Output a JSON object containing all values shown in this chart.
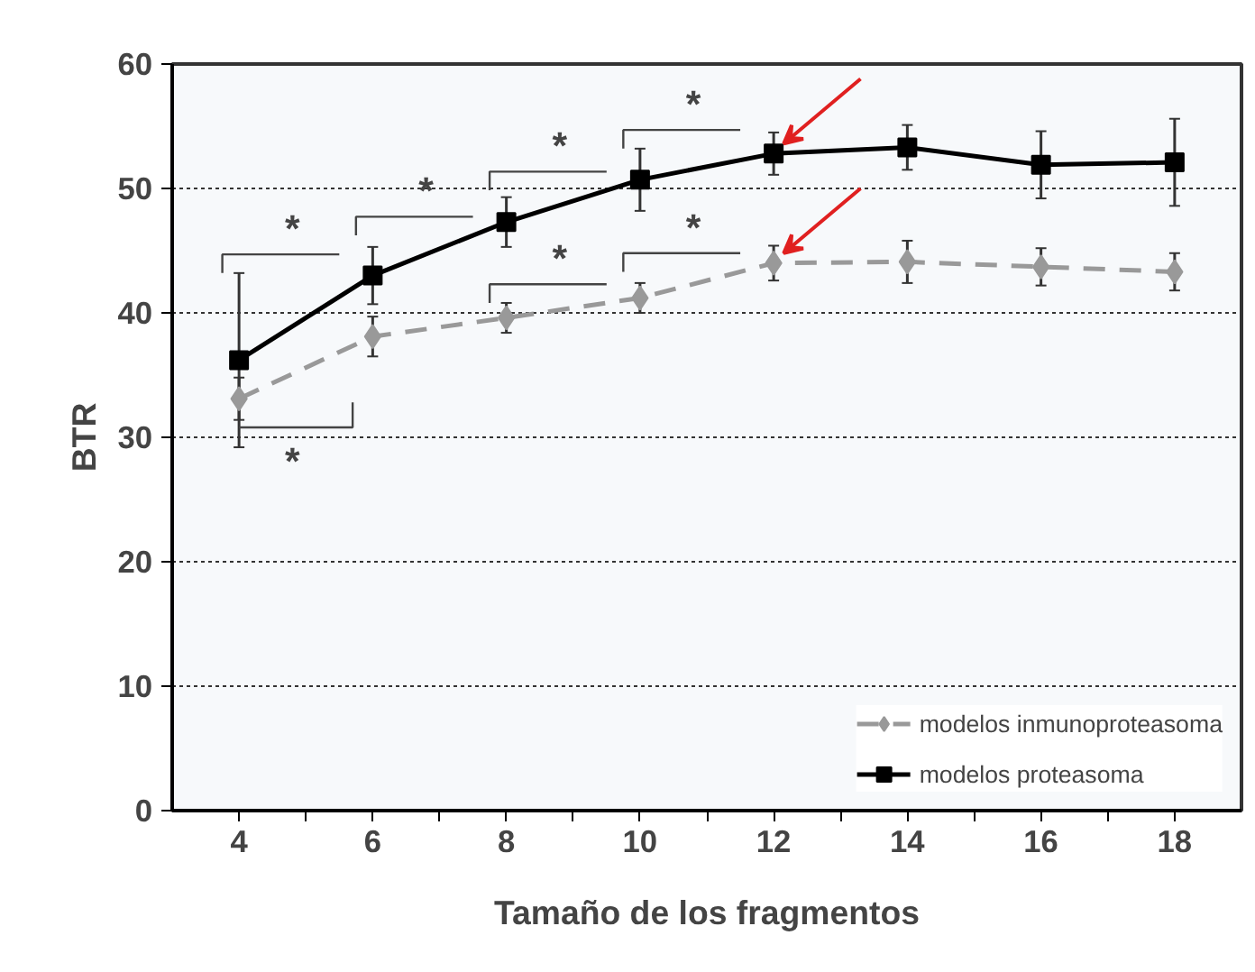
{
  "chart_data": {
    "type": "line",
    "xlabel": "Tamaño de los fragmentos",
    "ylabel": "BTR",
    "x": [
      4,
      6,
      8,
      10,
      12,
      14,
      16,
      18
    ],
    "series": [
      {
        "name": "modelos inmunoproteasoma",
        "color": "#999999",
        "marker": "diamond",
        "line_style": "dashed",
        "values": [
          33.1,
          38.1,
          39.6,
          41.2,
          44.0,
          44.1,
          43.7,
          43.3
        ],
        "errors": [
          1.7,
          1.6,
          1.2,
          1.2,
          1.4,
          1.7,
          1.5,
          1.5
        ]
      },
      {
        "name": "modelos proteasoma",
        "color": "#000000",
        "marker": "square",
        "line_style": "solid",
        "values": [
          36.2,
          43.0,
          47.3,
          50.7,
          52.8,
          53.3,
          51.9,
          52.1
        ],
        "errors": [
          7.0,
          2.3,
          2.0,
          2.5,
          1.7,
          1.8,
          2.7,
          3.5
        ]
      }
    ],
    "xlim": [
      3,
      19
    ],
    "ylim": [
      0,
      60
    ],
    "xticks": [
      4,
      {
        "value": 5,
        "label": null
      },
      6,
      {
        "value": 7,
        "label": null
      },
      8,
      {
        "value": 9,
        "label": null
      },
      10,
      {
        "value": 11,
        "label": null
      },
      12,
      {
        "value": 13,
        "label": null
      },
      14,
      {
        "value": 15,
        "label": null
      },
      16,
      {
        "value": 17,
        "label": null
      },
      18
    ],
    "yticks": [
      0,
      10,
      20,
      30,
      40,
      50,
      60
    ],
    "grid": "y",
    "legend": "bottom right",
    "annotations": [
      "*",
      "*",
      "*",
      "*",
      "*",
      "*",
      "*"
    ]
  }
}
